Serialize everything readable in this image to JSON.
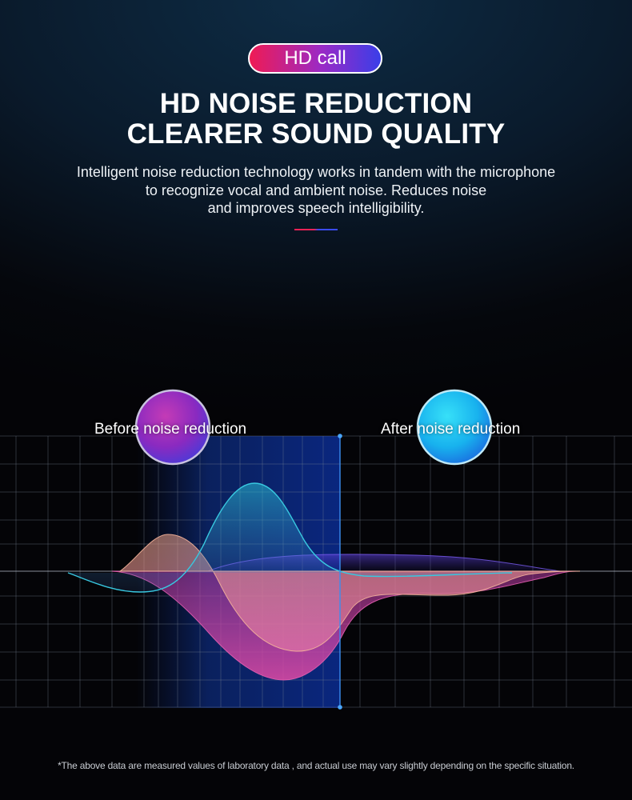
{
  "badge": {
    "label": "HD call"
  },
  "headline": {
    "line1": "HD NOISE REDUCTION",
    "line2": "CLEARER SOUND QUALITY"
  },
  "description": {
    "line1": "Intelligent noise reduction technology works in tandem with the microphone",
    "line2": "to recognize vocal and ambient noise. Reduces noise",
    "line3": "and improves speech intelligibility."
  },
  "comparison": {
    "before_label": "Before noise reduction",
    "after_label": "After noise reduction"
  },
  "colors": {
    "accent_red": "#ef1b54",
    "accent_blue": "#3a3ee8",
    "before_sphere": "#9a2ac6",
    "after_sphere": "#17b8f0"
  },
  "disclaimer": "*The above data are measured values of laboratory data , and actual use may vary slightly depending on the specific situation."
}
